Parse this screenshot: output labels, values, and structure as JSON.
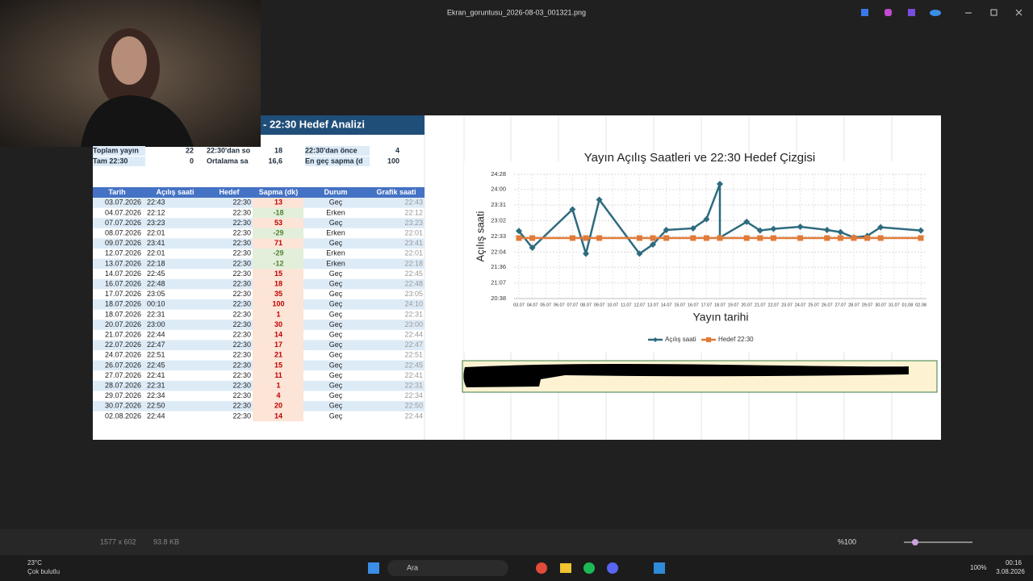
{
  "window": {
    "title": "Ekran_goruntusu_2026-08-03_001321.png"
  },
  "sheet": {
    "title": "- 22:30 Hedef Analizi",
    "summary": [
      [
        "Toplam yayın",
        "22",
        "22:30'dan so",
        "18",
        "22:30'dan önce",
        "4"
      ],
      [
        "Tam 22:30",
        "0",
        "Ortalama sa",
        "16,6",
        "En geç sapma (d",
        "100"
      ]
    ],
    "table": {
      "headers": [
        "Tarih",
        "Açılış saati",
        "Hedef",
        "Sapma (dk)",
        "Durum",
        "Grafik saati"
      ],
      "rows": [
        [
          "03.07.2026",
          "22:43",
          "22:30",
          "13",
          "Geç",
          "22:43"
        ],
        [
          "04.07.2026",
          "22:12",
          "22:30",
          "-18",
          "Erken",
          "22:12"
        ],
        [
          "07.07.2026",
          "23:23",
          "22:30",
          "53",
          "Geç",
          "23:23"
        ],
        [
          "08.07.2026",
          "22:01",
          "22:30",
          "-29",
          "Erken",
          "22:01"
        ],
        [
          "09.07.2026",
          "23:41",
          "22:30",
          "71",
          "Geç",
          "23:41"
        ],
        [
          "12.07.2026",
          "22:01",
          "22:30",
          "-29",
          "Erken",
          "22:01"
        ],
        [
          "13.07.2026",
          "22:18",
          "22:30",
          "-12",
          "Erken",
          "22:18"
        ],
        [
          "14.07.2026",
          "22:45",
          "22:30",
          "15",
          "Geç",
          "22:45"
        ],
        [
          "16.07.2026",
          "22:48",
          "22:30",
          "18",
          "Geç",
          "22:48"
        ],
        [
          "17.07.2026",
          "23:05",
          "22:30",
          "35",
          "Geç",
          "23:05"
        ],
        [
          "18.07.2026",
          "00:10",
          "22:30",
          "100",
          "Geç",
          "24:10"
        ],
        [
          "18.07.2026",
          "22:31",
          "22:30",
          "1",
          "Geç",
          "22:31"
        ],
        [
          "20.07.2026",
          "23:00",
          "22:30",
          "30",
          "Geç",
          "23:00"
        ],
        [
          "21.07.2026",
          "22:44",
          "22:30",
          "14",
          "Geç",
          "22:44"
        ],
        [
          "22.07.2026",
          "22:47",
          "22:30",
          "17",
          "Geç",
          "22:47"
        ],
        [
          "24.07.2026",
          "22:51",
          "22:30",
          "21",
          "Geç",
          "22:51"
        ],
        [
          "26.07.2026",
          "22:45",
          "22:30",
          "15",
          "Geç",
          "22:45"
        ],
        [
          "27.07.2026",
          "22:41",
          "22:30",
          "11",
          "Geç",
          "22:41"
        ],
        [
          "28.07.2026",
          "22:31",
          "22:30",
          "1",
          "Geç",
          "22:31"
        ],
        [
          "29.07.2026",
          "22:34",
          "22:30",
          "4",
          "Geç",
          "22:34"
        ],
        [
          "30.07.2026",
          "22:50",
          "22:30",
          "20",
          "Geç",
          "22:50"
        ],
        [
          "02.08.2026",
          "22:44",
          "22:30",
          "14",
          "Geç",
          "22:44"
        ]
      ]
    }
  },
  "chart": {
    "type": "line",
    "title": "Yayın Açılış Saatleri ve 22:30 Hedef Çizgisi",
    "x_label": "Yayın tarihi",
    "y_label": "Açılış saati",
    "x": [
      "03.07",
      "04.07",
      "07.07",
      "08.07",
      "09.07",
      "12.07",
      "13.07",
      "14.07",
      "16.07",
      "17.07",
      "18.07",
      "18.07",
      "20.07",
      "21.07",
      "22.07",
      "24.07",
      "26.07",
      "27.07",
      "28.07",
      "29.07",
      "30.07",
      "02.08"
    ],
    "xticks": [
      "03.07",
      "04.07",
      "05.07",
      "06.07",
      "07.07",
      "08.07",
      "09.07",
      "10.07",
      "11.07",
      "12.07",
      "13.07",
      "14.07",
      "15.07",
      "16.07",
      "17.07",
      "18.07",
      "19.07",
      "20.07",
      "21.07",
      "22.07",
      "23.07",
      "24.07",
      "25.07",
      "26.07",
      "27.07",
      "28.07",
      "29.07",
      "30.07",
      "31.07",
      "01.08",
      "02.08"
    ],
    "ylim": [
      1238,
      1468
    ],
    "yticks": [
      {
        "value": 1238,
        "label": "20:38"
      },
      {
        "value": 1267,
        "label": "21:07"
      },
      {
        "value": 1296,
        "label": "21:36"
      },
      {
        "value": 1324,
        "label": "22:04"
      },
      {
        "value": 1353,
        "label": "22:33"
      },
      {
        "value": 1382,
        "label": "23:02"
      },
      {
        "value": 1411,
        "label": "23:31"
      },
      {
        "value": 1440,
        "label": "24:00"
      },
      {
        "value": 1468,
        "label": "24:28"
      }
    ],
    "grid": true,
    "series": [
      {
        "name": "Açılış saati",
        "color": "#2e6b7e",
        "marker": "diamond",
        "values": [
          1363,
          1332,
          1403,
          1321,
          1421,
          1321,
          1338,
          1365,
          1368,
          1385,
          1450,
          1351,
          1380,
          1364,
          1367,
          1371,
          1365,
          1361,
          1351,
          1354,
          1370,
          1364
        ]
      },
      {
        "name": "Hedef 22:30",
        "color": "#e07b39",
        "marker": "square",
        "values": [
          1350,
          1350,
          1350,
          1350,
          1350,
          1350,
          1350,
          1350,
          1350,
          1350,
          1350,
          1350,
          1350,
          1350,
          1350,
          1350,
          1350,
          1350,
          1350,
          1350,
          1350,
          1350
        ]
      }
    ]
  },
  "viewer": {
    "dimensions": "1577 x 602",
    "size": "93.8 KB",
    "zoom": "%100"
  },
  "taskbar": {
    "temperature": "23°C",
    "weather": "Çok bulutlu",
    "search": "Ara",
    "battery": "100%",
    "time": "00:16",
    "date": "3.08.2026"
  }
}
